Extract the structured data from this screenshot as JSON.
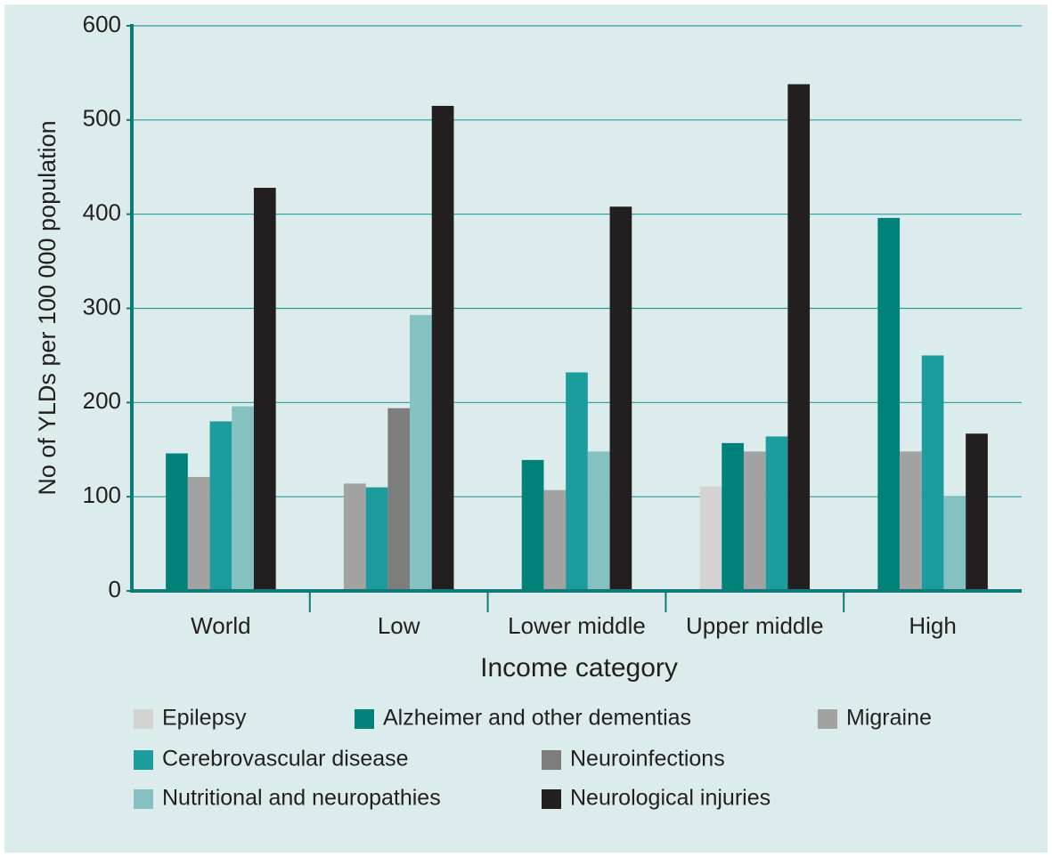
{
  "chart_data": {
    "type": "bar",
    "x_label": "Income category",
    "y_label": "No of YLDs per 100 000 population",
    "categories": [
      "World",
      "Low",
      "Lower middle",
      "Upper middle",
      "High"
    ],
    "series": [
      {
        "name": "Epilepsy",
        "color": "#d3d3d3",
        "values": [
          null,
          null,
          null,
          111,
          null
        ]
      },
      {
        "name": "Alzheimer and other dementias",
        "color": "#00827a",
        "values": [
          146,
          null,
          139,
          157,
          396
        ]
      },
      {
        "name": "Migraine",
        "color": "#a2a2a2",
        "values": [
          121,
          114,
          107,
          148,
          148
        ]
      },
      {
        "name": "Cerebrovascular disease",
        "color": "#1c9c9c",
        "values": [
          180,
          110,
          232,
          164,
          250
        ]
      },
      {
        "name": "Neuroinfections",
        "color": "#7d7d7d",
        "values": [
          null,
          194,
          null,
          null,
          null
        ]
      },
      {
        "name": "Nutritional and neuropathies",
        "color": "#86c1c1",
        "values": [
          196,
          293,
          148,
          null,
          100
        ]
      },
      {
        "name": "Neurological injuries",
        "color": "#231f20",
        "values": [
          428,
          515,
          408,
          538,
          167
        ]
      }
    ],
    "ylim": [
      0,
      600
    ],
    "yticks": [
      0,
      100,
      200,
      300,
      400,
      500,
      600
    ],
    "grid": true
  }
}
